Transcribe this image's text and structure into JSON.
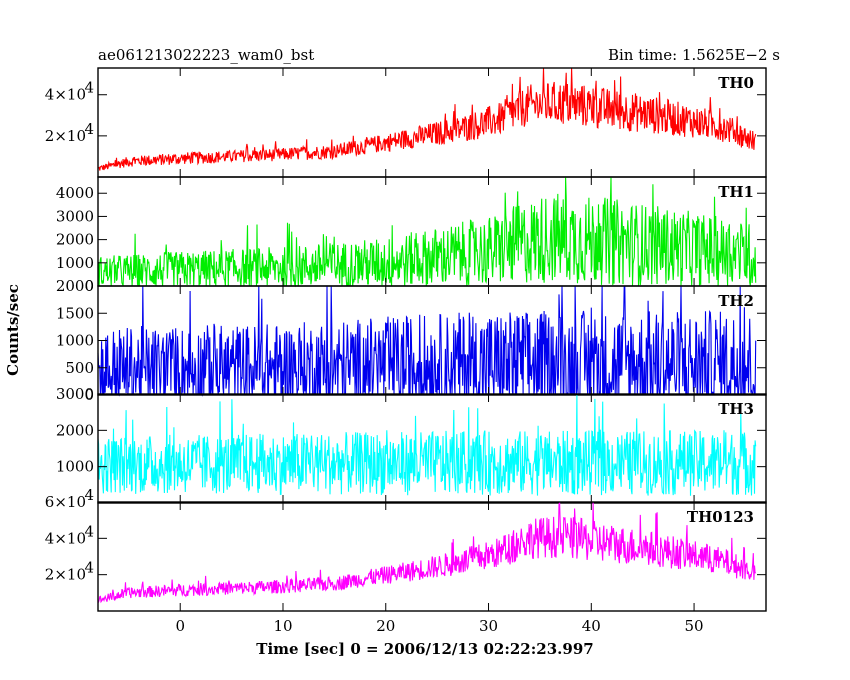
{
  "chart_data": {
    "type": "line",
    "title": "ae061213022223_wam0_bst",
    "subtitle": "Bin time: 1.5625E−2 s",
    "xlabel": "Time [sec] 0 = 2006/12/13 02:22:23.997",
    "ylabel": "Counts/sec",
    "xlim": [
      -8,
      57
    ],
    "x_ticks": [
      0,
      10,
      20,
      30,
      40,
      50
    ],
    "x_tick_labels": [
      "0",
      "10",
      "20",
      "30",
      "40",
      "50"
    ],
    "x_range": [
      -8,
      56
    ],
    "grid": false,
    "panels": [
      {
        "name": "TH0",
        "color": "#ff0000",
        "ylim": [
          0,
          53000
        ],
        "y_ticks": [
          20000,
          40000
        ],
        "y_tick_labels": [
          "2×10",
          "4×10"
        ],
        "y_tick_exp": "4",
        "envelope": {
          "x": [
            -8,
            -5,
            0,
            5,
            10,
            15,
            18,
            22,
            27,
            31,
            34,
            37,
            40,
            45,
            50,
            53,
            56
          ],
          "mean": [
            4000,
            7500,
            9000,
            10000,
            11000,
            12500,
            15000,
            18500,
            23000,
            28000,
            35000,
            36000,
            34000,
            31000,
            27000,
            24000,
            17000
          ],
          "spread": [
            1500,
            2500,
            3000,
            3000,
            3200,
            3500,
            4000,
            5000,
            6500,
            8000,
            10000,
            11000,
            10500,
            9500,
            8000,
            7000,
            5000
          ]
        }
      },
      {
        "name": "TH1",
        "color": "#00ee00",
        "ylim": [
          0,
          4700
        ],
        "y_ticks": [
          0,
          1000,
          2000,
          3000,
          4000
        ],
        "y_tick_labels": [
          "0",
          "1000",
          "2000",
          "3000",
          "4000"
        ],
        "envelope": {
          "x": [
            -8,
            0,
            10,
            20,
            30,
            36,
            42,
            50,
            56
          ],
          "mean": [
            600,
            700,
            800,
            1000,
            1500,
            2100,
            1900,
            1600,
            1300
          ],
          "spread": [
            700,
            800,
            900,
            1100,
            1500,
            2000,
            1900,
            1600,
            1400
          ]
        }
      },
      {
        "name": "TH2",
        "color": "#0000ee",
        "ylim": [
          0,
          2000
        ],
        "y_ticks": [
          0,
          500,
          1000,
          1500,
          2000
        ],
        "y_tick_labels": [
          "0",
          "500",
          "1000",
          "1500",
          "2000"
        ],
        "envelope": {
          "x": [
            -8,
            10,
            30,
            56
          ],
          "mean": [
            450,
            480,
            560,
            560
          ],
          "spread": [
            800,
            850,
            1000,
            1000
          ]
        }
      },
      {
        "name": "TH3",
        "color": "#00ffff",
        "ylim": [
          0,
          3000
        ],
        "y_ticks": [
          1000,
          2000,
          3000
        ],
        "y_tick_labels": [
          "1000",
          "2000",
          "3000"
        ],
        "envelope": {
          "x": [
            -8,
            10,
            30,
            56
          ],
          "mean": [
            1050,
            1080,
            1100,
            1100
          ],
          "spread": [
            800,
            850,
            900,
            900
          ]
        }
      },
      {
        "name": "TH0123",
        "color": "#ff00ff",
        "ylim": [
          0,
          60000
        ],
        "y_ticks": [
          20000,
          40000,
          60000
        ],
        "y_tick_labels": [
          "2×10",
          "4×10",
          "6×10"
        ],
        "y_tick_exp": "4",
        "envelope": {
          "x": [
            -8,
            -5,
            0,
            5,
            10,
            15,
            18,
            22,
            27,
            31,
            34,
            37,
            40,
            45,
            50,
            53,
            56
          ],
          "mean": [
            6000,
            10000,
            11500,
            12500,
            13500,
            15000,
            18000,
            21500,
            26500,
            32000,
            40000,
            41000,
            38500,
            35000,
            30500,
            27000,
            21000
          ],
          "spread": [
            2000,
            3000,
            3500,
            3500,
            3800,
            4000,
            4500,
            5500,
            7000,
            8500,
            11000,
            12000,
            11500,
            10000,
            8500,
            7500,
            5500
          ]
        }
      }
    ]
  }
}
